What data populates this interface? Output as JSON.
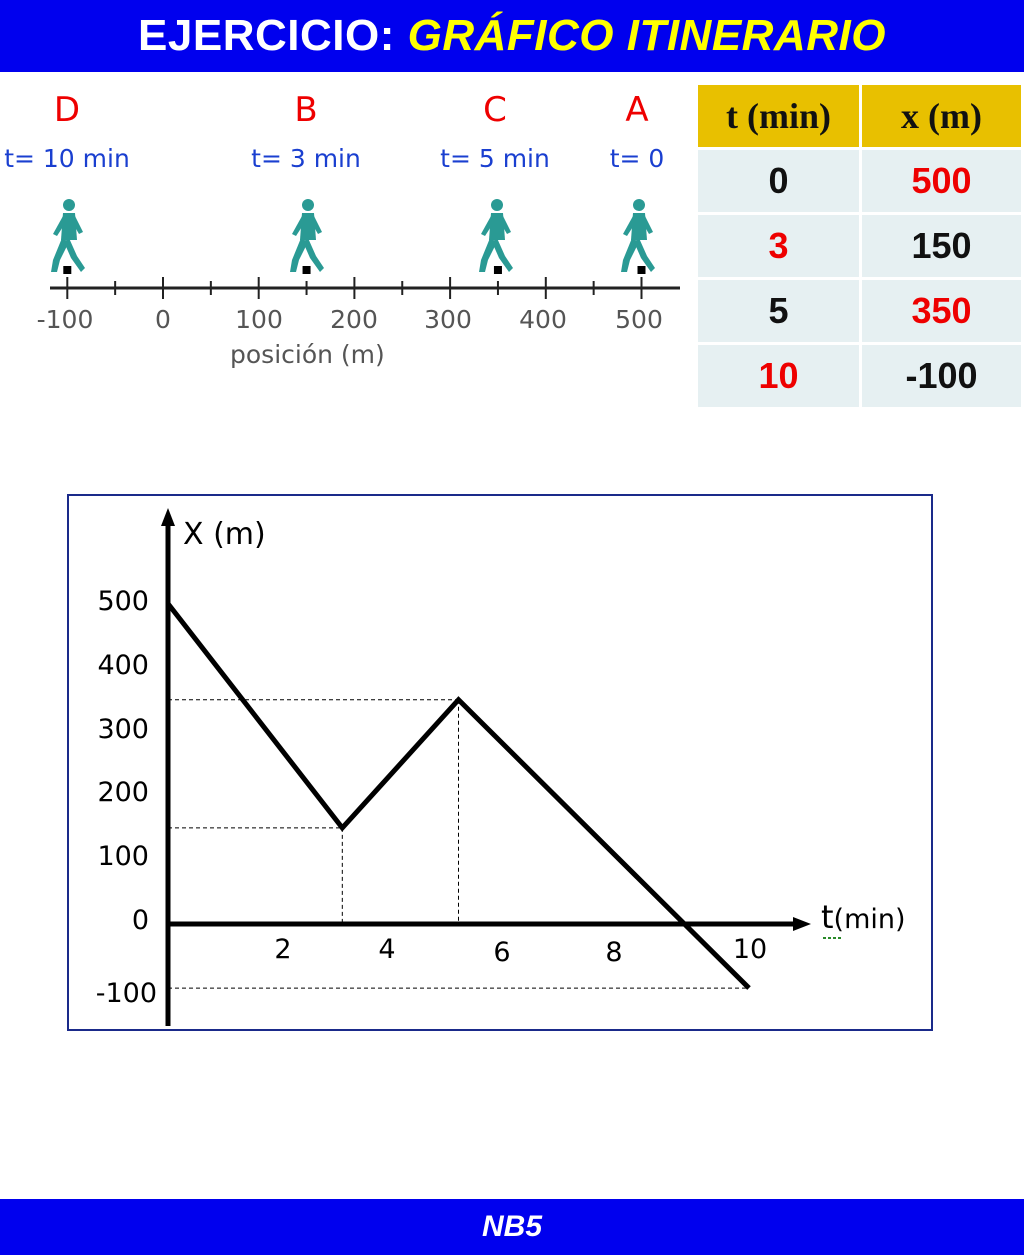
{
  "header": {
    "title_main": "EJERCICIO:",
    "title_accent": "GRÁFICO ITINERARIO"
  },
  "track": {
    "walkers": [
      {
        "letter": "D",
        "time": "t= 10 min",
        "position": -100
      },
      {
        "letter": "B",
        "time": "t= 3 min",
        "position": 150
      },
      {
        "letter": "C",
        "time": "t= 5 min",
        "position": 350
      },
      {
        "letter": "A",
        "time": "t= 0",
        "position": 500
      }
    ],
    "ticks": [
      "-100",
      "0",
      "100",
      "200",
      "300",
      "400",
      "500"
    ],
    "axis_label": "posición (m)",
    "colors": {
      "letter": "#ee0000",
      "time": "#1a3fd0",
      "figure": "#2a9a94"
    }
  },
  "table": {
    "headers": [
      "t (min)",
      "x (m)"
    ],
    "rows": [
      [
        "0",
        "500"
      ],
      [
        "3",
        "150"
      ],
      [
        "5",
        "350"
      ],
      [
        "10",
        "-100"
      ]
    ],
    "colors": {
      "header_bg": "#e8c000",
      "cell_bg": "#e6f0f2",
      "highlight": "#ee0000"
    }
  },
  "chart_data": {
    "type": "line",
    "ylabel": "X (m)",
    "xlabel_prefix": "t",
    "xlabel_unit": "(min)",
    "x_ticks": [
      "2",
      "4",
      "6",
      "8",
      "10"
    ],
    "y_ticks": [
      "500",
      "400",
      "300",
      "200",
      "100",
      "0",
      "-100"
    ],
    "xlim": [
      0,
      10
    ],
    "ylim": [
      -100,
      500
    ],
    "series": [
      {
        "x": [
          0,
          3,
          5,
          10
        ],
        "y": [
          500,
          150,
          350,
          -100
        ]
      }
    ],
    "guides": [
      {
        "x": 3,
        "y": 150
      },
      {
        "x": 5,
        "y": 350
      },
      {
        "x": 10,
        "y": -100
      }
    ],
    "grid": false
  },
  "footer": {
    "label": "NB5"
  }
}
